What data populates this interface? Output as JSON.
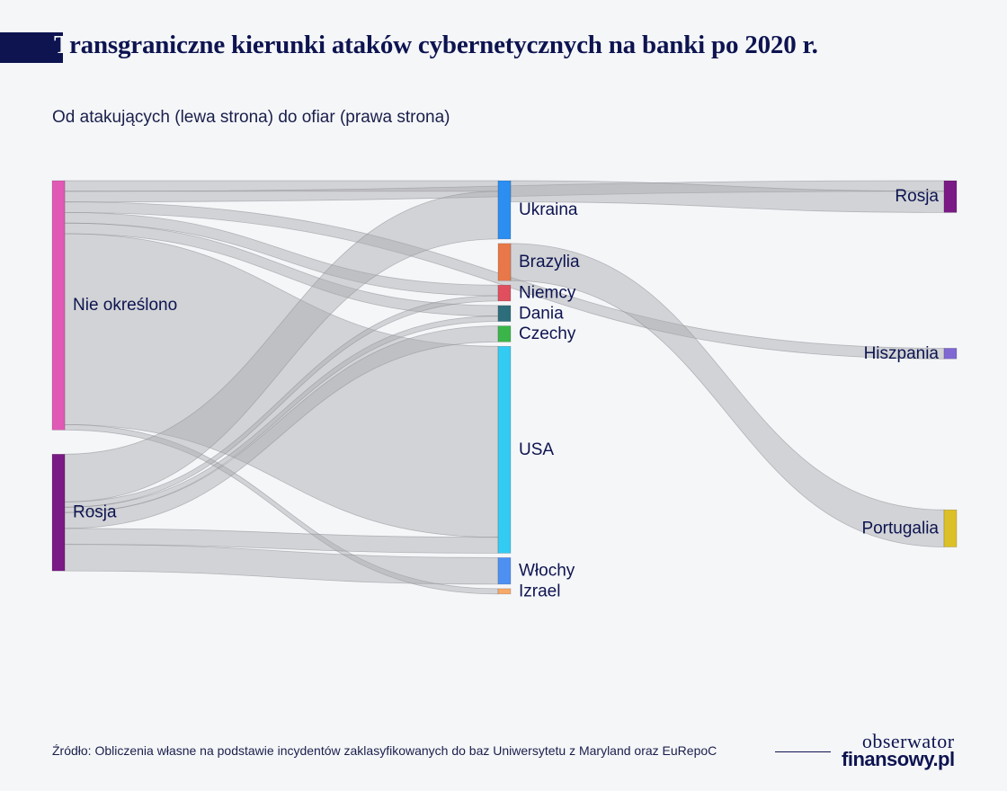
{
  "header": {
    "title_first": "T",
    "title_rest": "ransgraniczne kierunki ataków cybernetycznych na banki po 2020 r.",
    "subtitle": "Od atakujących (lewa strona) do ofiar (prawa strona)"
  },
  "footer": {
    "source": "Źródło: Obliczenia własne na podstawie incydentów zaklasyfikowanych do baz Uniwersytetu z Maryland oraz EuRepoC",
    "brand_line1": "obserwator",
    "brand_line2": "finansowy.pl"
  },
  "chart_data": {
    "type": "sankey",
    "title": "Transgraniczne kierunki ataków cybernetycznych na banki po 2020 r.",
    "subtitle": "Od atakujących (lewa strona) do ofiar (prawa strona)",
    "link_color": "#a9a9ae",
    "nodes": [
      {
        "id": "nie_okreslono",
        "label": "Nie określono",
        "column": 0,
        "color": "#e05ab5"
      },
      {
        "id": "rosja_src",
        "label": "Rosja",
        "column": 0,
        "color": "#7a1a85"
      },
      {
        "id": "ukraina",
        "label": "Ukraina",
        "column": 1,
        "color": "#2c8ef0"
      },
      {
        "id": "brazylia",
        "label": "Brazylia",
        "column": 1,
        "color": "#e8784a"
      },
      {
        "id": "niemcy",
        "label": "Niemcy",
        "column": 1,
        "color": "#df4f5e"
      },
      {
        "id": "dania",
        "label": "Dania",
        "column": 1,
        "color": "#2e6e7c"
      },
      {
        "id": "czechy",
        "label": "Czechy",
        "column": 1,
        "color": "#3bb54a"
      },
      {
        "id": "usa",
        "label": "USA",
        "column": 1,
        "color": "#33cbf2"
      },
      {
        "id": "wlochy",
        "label": "Włochy",
        "column": 1,
        "color": "#4e90f2"
      },
      {
        "id": "izrael",
        "label": "Izrael",
        "column": 1,
        "color": "#f8a868"
      },
      {
        "id": "rosja_dst",
        "label": "Rosja",
        "column": 2,
        "color": "#7a1a85"
      },
      {
        "id": "hiszpania",
        "label": "Hiszpania",
        "column": 2,
        "color": "#8068d2"
      },
      {
        "id": "portugalia",
        "label": "Portugalia",
        "column": 2,
        "color": "#dcc027"
      }
    ],
    "links": [
      {
        "source": "nie_okreslono",
        "target": "ukraina",
        "value": 2
      },
      {
        "source": "nie_okreslono",
        "target": "rosja_dst",
        "value": 2
      },
      {
        "source": "nie_okreslono",
        "target": "hiszpania",
        "value": 2
      },
      {
        "source": "nie_okreslono",
        "target": "niemcy",
        "value": 2
      },
      {
        "source": "nie_okreslono",
        "target": "dania",
        "value": 2
      },
      {
        "source": "nie_okreslono",
        "target": "usa",
        "value": 36
      },
      {
        "source": "nie_okreslono",
        "target": "izrael",
        "value": 1
      },
      {
        "source": "rosja_src",
        "target": "ukraina",
        "value": 9
      },
      {
        "source": "rosja_src",
        "target": "niemcy",
        "value": 1
      },
      {
        "source": "rosja_src",
        "target": "dania",
        "value": 1
      },
      {
        "source": "rosja_src",
        "target": "czechy",
        "value": 3
      },
      {
        "source": "rosja_src",
        "target": "usa",
        "value": 3
      },
      {
        "source": "rosja_src",
        "target": "wlochy",
        "value": 5
      },
      {
        "source": "ukraina",
        "target": "rosja_dst",
        "value": 4
      },
      {
        "source": "brazylia",
        "target": "portugalia",
        "value": 7
      }
    ]
  }
}
